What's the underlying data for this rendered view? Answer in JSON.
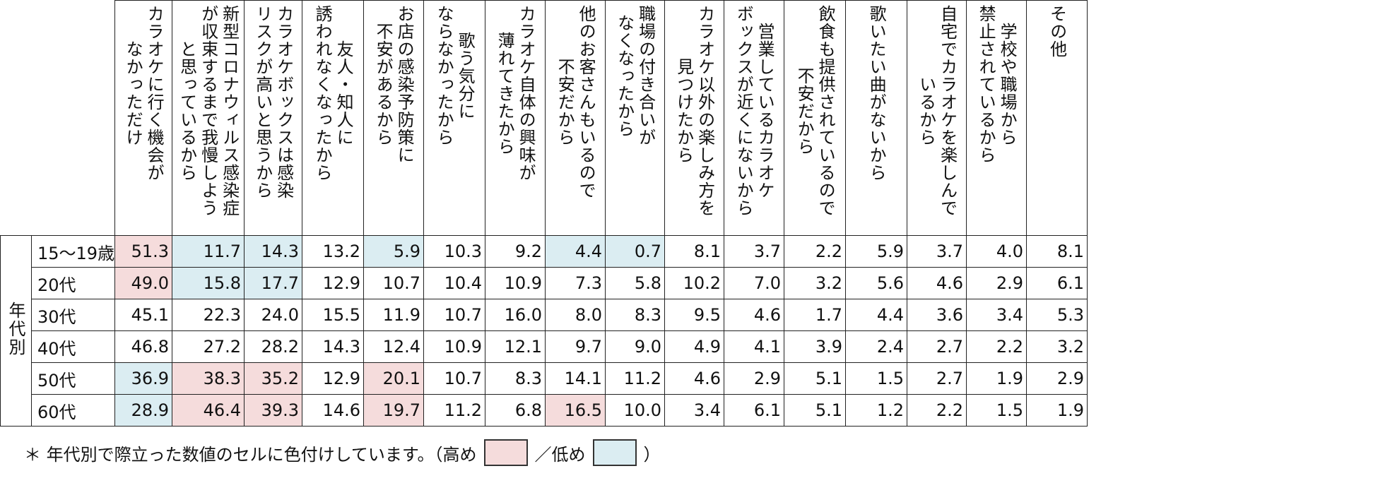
{
  "chart_data": {
    "type": "table",
    "group_label": "年代別",
    "columns": [
      "カラオケに行く機会が\nなかっただけ",
      "新型コロナウィルス感染症\nが収束するまで我慢しよう\nと思っているから",
      "カラオケボックスは感染\nリスクが高いと思うから",
      "友人・知人に\n誘われなくなったから",
      "お店の感染予防策に\n不安があるから",
      "歌う気分に\nならなかったから",
      "カラオケ自体の興味が\n薄れてきたから",
      "他のお客さんもいるので\n不安だから",
      "職場の付き合いが\nなくなったから",
      "カラオケ以外の楽しみ方を\n見つけたから",
      "営業しているカラオケ\nボックスが近くにないから",
      "飲食も提供されているので\n不安だから",
      "歌いたい曲がないから",
      "自宅でカラオケを楽しんで\nいるから",
      "学校や職場から\n禁止されているから",
      "その他"
    ],
    "rows": [
      {
        "label": "15〜19歳",
        "values": [
          "51.3",
          "11.7",
          "14.3",
          "13.2",
          "5.9",
          "10.3",
          "9.2",
          "4.4",
          "0.7",
          "8.1",
          "3.7",
          "2.2",
          "5.9",
          "3.7",
          "4.0",
          "8.1"
        ],
        "highlight": [
          "hi",
          "lo",
          "lo",
          "",
          "lo",
          "",
          "",
          "lo",
          "lo",
          "",
          "",
          "",
          "",
          "",
          "",
          ""
        ]
      },
      {
        "label": "20代",
        "values": [
          "49.0",
          "15.8",
          "17.7",
          "12.9",
          "10.7",
          "10.4",
          "10.9",
          "7.3",
          "5.8",
          "10.2",
          "7.0",
          "3.2",
          "5.6",
          "4.6",
          "2.9",
          "6.1"
        ],
        "highlight": [
          "hi",
          "lo",
          "lo",
          "",
          "",
          "",
          "",
          "",
          "",
          "",
          "",
          "",
          "",
          "",
          "",
          ""
        ]
      },
      {
        "label": "30代",
        "values": [
          "45.1",
          "22.3",
          "24.0",
          "15.5",
          "11.9",
          "10.7",
          "16.0",
          "8.0",
          "8.3",
          "9.5",
          "4.6",
          "1.7",
          "4.4",
          "3.6",
          "3.4",
          "5.3"
        ],
        "highlight": [
          "",
          "",
          "",
          "",
          "",
          "",
          "",
          "",
          "",
          "",
          "",
          "",
          "",
          "",
          "",
          ""
        ]
      },
      {
        "label": "40代",
        "values": [
          "46.8",
          "27.2",
          "28.2",
          "14.3",
          "12.4",
          "10.9",
          "12.1",
          "9.7",
          "9.0",
          "4.9",
          "4.1",
          "3.9",
          "2.4",
          "2.7",
          "2.2",
          "3.2"
        ],
        "highlight": [
          "",
          "",
          "",
          "",
          "",
          "",
          "",
          "",
          "",
          "",
          "",
          "",
          "",
          "",
          "",
          ""
        ]
      },
      {
        "label": "50代",
        "values": [
          "36.9",
          "38.3",
          "35.2",
          "12.9",
          "20.1",
          "10.7",
          "8.3",
          "14.1",
          "11.2",
          "4.6",
          "2.9",
          "5.1",
          "1.5",
          "2.7",
          "1.9",
          "2.9"
        ],
        "highlight": [
          "lo",
          "hi",
          "hi",
          "",
          "hi",
          "",
          "",
          "",
          "",
          "",
          "",
          "",
          "",
          "",
          "",
          ""
        ]
      },
      {
        "label": "60代",
        "values": [
          "28.9",
          "46.4",
          "39.3",
          "14.6",
          "19.7",
          "11.2",
          "6.8",
          "16.5",
          "10.0",
          "3.4",
          "6.1",
          "5.1",
          "1.2",
          "2.2",
          "1.5",
          "1.9"
        ],
        "highlight": [
          "lo",
          "hi",
          "hi",
          "",
          "hi",
          "",
          "",
          "hi",
          "",
          "",
          "",
          "",
          "",
          "",
          "",
          ""
        ]
      }
    ],
    "colors": {
      "high": "#f5dcdc",
      "low": "#dbedf2"
    }
  },
  "note": {
    "prefix": "＊ 年代別で際立った数値のセルに色付けしています。（高め",
    "middle": "／低め",
    "suffix": "）"
  }
}
